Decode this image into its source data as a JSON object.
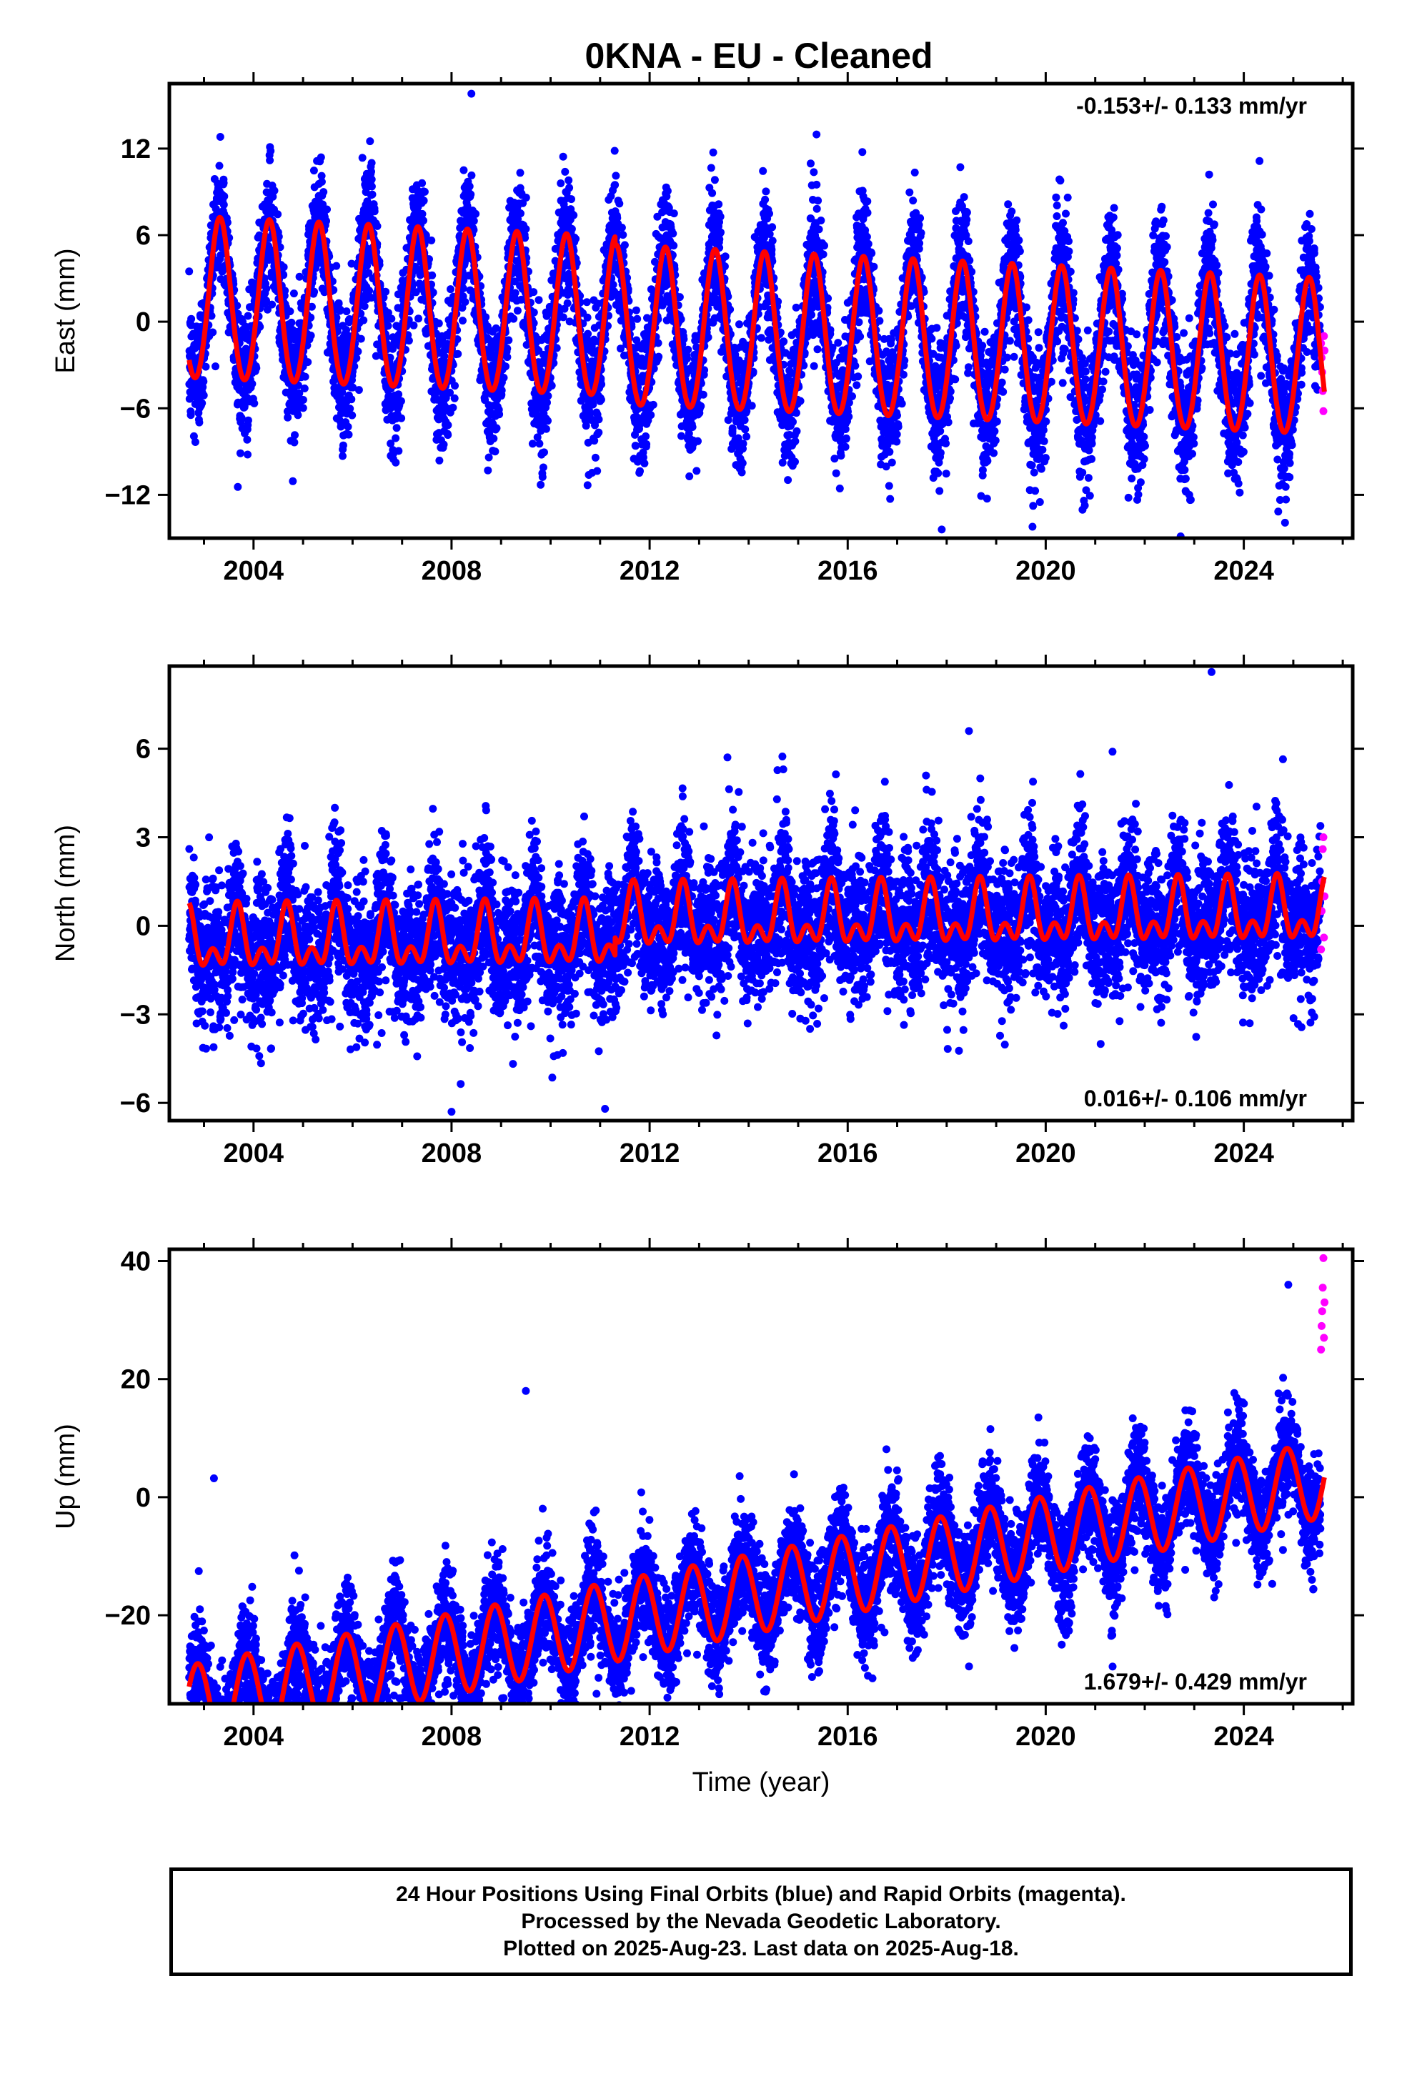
{
  "title": "0KNA  - EU - Cleaned",
  "colors": {
    "final_orbits": "#0000ff",
    "rapid_orbits": "#ff00ff",
    "model_fit": "#ff0000",
    "frame": "#000000"
  },
  "footer": {
    "line1": "24 Hour Positions Using Final Orbits (blue) and Rapid Orbits (magenta).",
    "line2": "Processed by the Nevada Geodetic Laboratory.",
    "line3": "Plotted on 2025-Aug-23. Last data on 2025-Aug-18."
  },
  "chart_data": [
    {
      "type": "scatter",
      "name": "east",
      "ylabel": "East (mm)",
      "xlabel": "",
      "xlim": [
        2002.3,
        2026.2
      ],
      "ylim": [
        -15,
        16.5
      ],
      "x_ticks": [
        2004,
        2008,
        2012,
        2016,
        2020,
        2024
      ],
      "y_ticks": [
        -12,
        -6,
        0,
        6,
        12
      ],
      "velocity_label": "-0.153+/- 0.133 mm/yr",
      "velocity_position": "top-right",
      "model": {
        "start": 2002.7,
        "end": 2025.63,
        "offset_pre": -0.3,
        "trend": -0.153,
        "step_time": 2011.3,
        "step": -0.6,
        "annual_amp_start": 5.6,
        "annual_amp_end": 5.4,
        "annual_phase": 0.07,
        "semiannual_amp": 0.3,
        "semiannual_phase": 0.2
      },
      "scatter": {
        "noise": 2.2,
        "rapid_start": 2025.55,
        "rapid_values": [
          -1.5,
          -2.5,
          -3.5,
          -4.8,
          -6.2,
          -1.0,
          -2.0
        ]
      },
      "outliers": [
        [
          2008.4,
          15.8
        ],
        [
          2017.9,
          -14.4
        ],
        [
          2023.3,
          10.2
        ],
        [
          2022.9,
          -12.0
        ]
      ]
    },
    {
      "type": "scatter",
      "name": "north",
      "ylabel": "North (mm)",
      "xlabel": "",
      "xlim": [
        2002.3,
        2026.2
      ],
      "ylim": [
        -6.6,
        8.8
      ],
      "x_ticks": [
        2004,
        2008,
        2012,
        2016,
        2020,
        2024
      ],
      "y_ticks": [
        -6,
        -3,
        0,
        3,
        6
      ],
      "velocity_label": "0.016+/- 0.106 mm/yr",
      "velocity_position": "bottom-right",
      "model": {
        "start": 2002.7,
        "end": 2025.63,
        "offset_pre": -0.4,
        "trend": 0.016,
        "step_time": 2011.3,
        "step": 0.6,
        "annual_amp_start": 0.8,
        "annual_amp_end": 0.8,
        "annual_phase": 0.42,
        "semiannual_amp": 0.6,
        "semiannual_phase": 0.55
      },
      "scatter": {
        "noise": 1.2,
        "rapid_start": 2025.55,
        "rapid_values": [
          -0.8,
          0.5,
          1.5,
          2.6,
          3.0,
          -0.4,
          1.0
        ]
      },
      "outliers": [
        [
          2023.35,
          8.6
        ],
        [
          2018.45,
          6.6
        ],
        [
          2021.35,
          5.9
        ],
        [
          2008.0,
          -6.3
        ],
        [
          2011.1,
          -6.2
        ],
        [
          2014.7,
          5.3
        ]
      ]
    },
    {
      "type": "scatter",
      "name": "up",
      "ylabel": "Up (mm)",
      "xlabel": "Time (year)",
      "xlim": [
        2002.3,
        2026.2
      ],
      "ylim": [
        -35,
        42
      ],
      "x_ticks": [
        2004,
        2008,
        2012,
        2016,
        2020,
        2024
      ],
      "y_ticks": [
        -20,
        0,
        20,
        40
      ],
      "velocity_label": "1.679+/- 0.429 mm/yr",
      "velocity_position": "bottom-right",
      "model": {
        "start": 2002.7,
        "end": 2025.63,
        "offset_pre": -16.5,
        "trend": 1.679,
        "step_time": 2011.3,
        "step": 0.0,
        "annual_amp_start": 7.0,
        "annual_amp_end": 6.5,
        "annual_phase": 0.62,
        "semiannual_amp": 0.0,
        "semiannual_phase": 0.0
      },
      "scatter": {
        "noise": 4.5,
        "rapid_start": 2025.55,
        "rapid_values": [
          25.0,
          29.0,
          31.5,
          35.5,
          40.5,
          27.0,
          33.0
        ]
      },
      "outliers": [
        [
          2003.9,
          -33.5
        ],
        [
          2007.0,
          -34.0
        ],
        [
          2009.5,
          18.0
        ],
        [
          2003.2,
          3.2
        ],
        [
          2024.9,
          36.0
        ]
      ]
    }
  ]
}
